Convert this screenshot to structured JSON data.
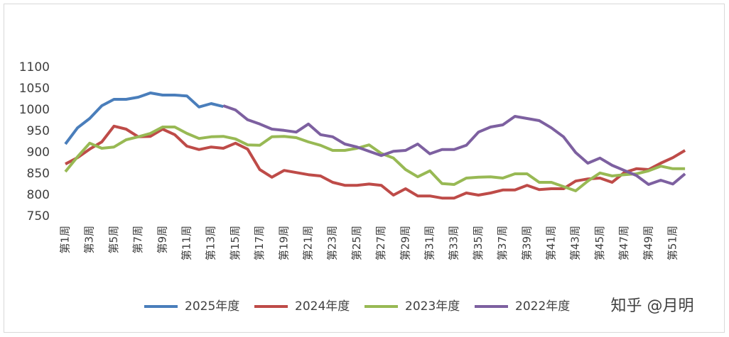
{
  "chart_data": {
    "type": "line",
    "categories": [
      "第1周",
      null,
      "第3周",
      null,
      "第5周",
      null,
      "第7周",
      null,
      "第9周",
      null,
      "第11周",
      null,
      "第13周",
      null,
      "第15周",
      null,
      "第17周",
      null,
      "第19周",
      null,
      "第21周",
      null,
      "第23周",
      null,
      "第25周",
      null,
      "第27周",
      null,
      "第29周",
      null,
      "第31周",
      null,
      "第33周",
      null,
      "第35周",
      null,
      "第37周",
      null,
      "第39周",
      null,
      "第41周",
      null,
      "第43周",
      null,
      "第45周",
      null,
      "第47周",
      null,
      "第49周",
      null,
      "第51周",
      null
    ],
    "series": [
      {
        "name": "2025年度",
        "color": "#4a7ebb",
        "values": [
          920,
          958,
          980,
          1010,
          1025,
          1025,
          1030,
          1040,
          1035,
          1035,
          1033,
          1007,
          1015,
          1008,
          null,
          null,
          null,
          null,
          null,
          null,
          null,
          null,
          null,
          null,
          null,
          null,
          null,
          null,
          null,
          null,
          null,
          null,
          null,
          null,
          null,
          null,
          null,
          null,
          null,
          null,
          null,
          null,
          null,
          null,
          null,
          null,
          null,
          null,
          null,
          null,
          null,
          null
        ]
      },
      {
        "name": "2024年度",
        "color": "#be4b48",
        "values": [
          873,
          888,
          908,
          925,
          962,
          955,
          937,
          938,
          955,
          942,
          915,
          907,
          913,
          910,
          922,
          908,
          860,
          842,
          858,
          853,
          848,
          845,
          830,
          823,
          823,
          826,
          823,
          800,
          815,
          798,
          798,
          793,
          793,
          805,
          800,
          805,
          812,
          812,
          823,
          813,
          815,
          815,
          833,
          838,
          840,
          830,
          853,
          862,
          860,
          875,
          888,
          905
        ]
      },
      {
        "name": "2023年度",
        "color": "#98b954",
        "values": [
          855,
          890,
          922,
          910,
          913,
          930,
          937,
          945,
          960,
          960,
          945,
          933,
          937,
          938,
          932,
          918,
          917,
          937,
          938,
          935,
          925,
          917,
          905,
          905,
          910,
          918,
          898,
          887,
          860,
          843,
          857,
          827,
          825,
          840,
          842,
          843,
          840,
          850,
          850,
          830,
          830,
          820,
          810,
          833,
          852,
          845,
          848,
          850,
          857,
          868,
          862,
          862
        ]
      },
      {
        "name": "2022年度",
        "color": "#7d60a0",
        "values": [
          null,
          null,
          null,
          null,
          null,
          null,
          null,
          null,
          null,
          null,
          null,
          null,
          null,
          1010,
          1000,
          977,
          967,
          955,
          952,
          948,
          967,
          942,
          937,
          920,
          913,
          903,
          893,
          903,
          905,
          920,
          897,
          907,
          907,
          917,
          948,
          960,
          965,
          985,
          980,
          975,
          958,
          937,
          900,
          875,
          887,
          870,
          858,
          846,
          825,
          835,
          826,
          850
        ]
      }
    ],
    "ylim": [
      750,
      1100
    ],
    "yticks": [
      750,
      800,
      850,
      900,
      950,
      1000,
      1050,
      1100
    ],
    "legend": "bottom",
    "watermark": "知乎 @月明"
  }
}
